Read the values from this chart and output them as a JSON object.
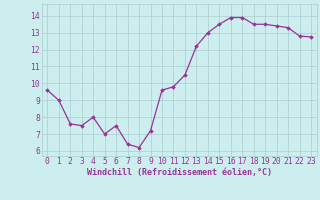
{
  "x": [
    0,
    1,
    2,
    3,
    4,
    5,
    6,
    7,
    8,
    9,
    10,
    11,
    12,
    13,
    14,
    15,
    16,
    17,
    18,
    19,
    20,
    21,
    22,
    23
  ],
  "y": [
    9.6,
    9.0,
    7.6,
    7.5,
    8.0,
    7.0,
    7.5,
    6.4,
    6.2,
    7.2,
    9.6,
    9.8,
    10.5,
    12.2,
    13.0,
    13.5,
    13.9,
    13.9,
    13.5,
    13.5,
    13.4,
    13.3,
    12.8,
    12.75
  ],
  "line_color": "#993399",
  "marker": "D",
  "marker_size": 1.8,
  "line_width": 0.9,
  "bg_color": "#cceeee",
  "grid_color": "#aacccc",
  "xlabel": "Windchill (Refroidissement éolien,°C)",
  "xlabel_fontsize": 6.0,
  "xlabel_color": "#993399",
  "tick_color": "#993399",
  "tick_fontsize": 5.8,
  "yticks": [
    6,
    7,
    8,
    9,
    10,
    11,
    12,
    13,
    14
  ],
  "xticks": [
    0,
    1,
    2,
    3,
    4,
    5,
    6,
    7,
    8,
    9,
    10,
    11,
    12,
    13,
    14,
    15,
    16,
    17,
    18,
    19,
    20,
    21,
    22,
    23
  ],
  "ylim": [
    5.7,
    14.7
  ],
  "xlim": [
    -0.5,
    23.5
  ]
}
